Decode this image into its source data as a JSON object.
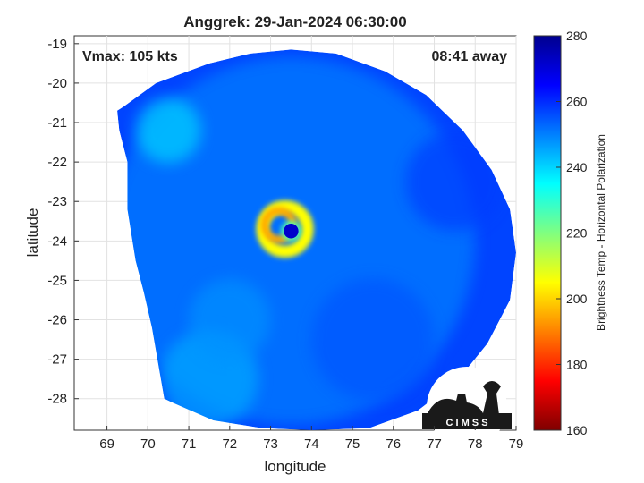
{
  "chart_data": {
    "type": "heatmap",
    "title": "Anggrek: 29-Jan-2024 06:30:00",
    "xlabel": "longitude",
    "ylabel": "latitude",
    "xlim": [
      68.2,
      79.0
    ],
    "ylim": [
      -28.8,
      -18.8
    ],
    "xticks": [
      69,
      70,
      71,
      72,
      73,
      74,
      75,
      76,
      77,
      78,
      79
    ],
    "yticks": [
      -19,
      -20,
      -21,
      -22,
      -23,
      -24,
      -25,
      -26,
      -27,
      -28
    ],
    "grid": true,
    "annotations": {
      "vmax": "Vmax: 105 kts",
      "time_away": "08:41 away"
    },
    "storm_center": {
      "lon": 73.5,
      "lat": -23.75
    },
    "colorbar": {
      "label": "Brightness Temp - Horizontal Polarization",
      "range": [
        160,
        280
      ],
      "ticks": [
        160,
        180,
        200,
        220,
        240,
        260,
        280
      ],
      "colors": [
        "#7f0000",
        "#ff0000",
        "#ff8000",
        "#ffff00",
        "#80ff80",
        "#00ffff",
        "#0080ff",
        "#0000ff",
        "#00008f"
      ]
    },
    "swath_boundary_lonlat": [
      [
        69.25,
        -20.7
      ],
      [
        69.4,
        -20.6
      ],
      [
        70.2,
        -20.0
      ],
      [
        71.5,
        -19.5
      ],
      [
        72.5,
        -19.25
      ],
      [
        73.5,
        -19.15
      ],
      [
        74.6,
        -19.25
      ],
      [
        75.8,
        -19.7
      ],
      [
        76.8,
        -20.3
      ],
      [
        77.7,
        -21.2
      ],
      [
        78.4,
        -22.2
      ],
      [
        78.85,
        -23.2
      ],
      [
        79.0,
        -24.3
      ],
      [
        78.85,
        -25.5
      ],
      [
        78.3,
        -26.6
      ],
      [
        77.6,
        -27.5
      ],
      [
        76.6,
        -28.3
      ],
      [
        75.4,
        -28.75
      ],
      [
        74.0,
        -28.8
      ],
      [
        72.8,
        -28.75
      ],
      [
        71.6,
        -28.55
      ],
      [
        70.6,
        -28.1
      ],
      [
        70.4,
        -28.0
      ],
      [
        70.3,
        -27.4
      ],
      [
        70.1,
        -26.2
      ],
      [
        69.9,
        -25.3
      ],
      [
        69.7,
        -24.5
      ],
      [
        69.5,
        -23.2
      ],
      [
        69.5,
        -22.0
      ],
      [
        69.3,
        -21.2
      ],
      [
        69.25,
        -20.7
      ]
    ],
    "field_features": [
      {
        "kind": "blob",
        "lon": 73.5,
        "lat": -24.0,
        "r_deg": 4.5,
        "temp": 250
      },
      {
        "kind": "blob",
        "lon": 71.5,
        "lat": -27.5,
        "r_deg": 1.2,
        "temp": 245
      },
      {
        "kind": "blob",
        "lon": 72.0,
        "lat": -26.0,
        "r_deg": 1.0,
        "temp": 248
      },
      {
        "kind": "blob",
        "lon": 70.5,
        "lat": -21.2,
        "r_deg": 0.8,
        "temp": 240
      },
      {
        "kind": "blob",
        "lon": 75.5,
        "lat": -26.5,
        "r_deg": 1.5,
        "temp": 255
      },
      {
        "kind": "blob",
        "lon": 77.5,
        "lat": -22.5,
        "r_deg": 1.2,
        "temp": 258
      },
      {
        "kind": "ring",
        "lon": 73.35,
        "lat": -23.7,
        "r_deg": 0.55,
        "temp": 205
      },
      {
        "kind": "ring",
        "lon": 73.2,
        "lat": -23.6,
        "r_deg": 0.35,
        "temp": 195
      },
      {
        "kind": "eye",
        "lon": 73.5,
        "lat": -23.75,
        "r_deg": 0.18,
        "temp": 272
      }
    ],
    "logo_text": "C I M S S"
  }
}
